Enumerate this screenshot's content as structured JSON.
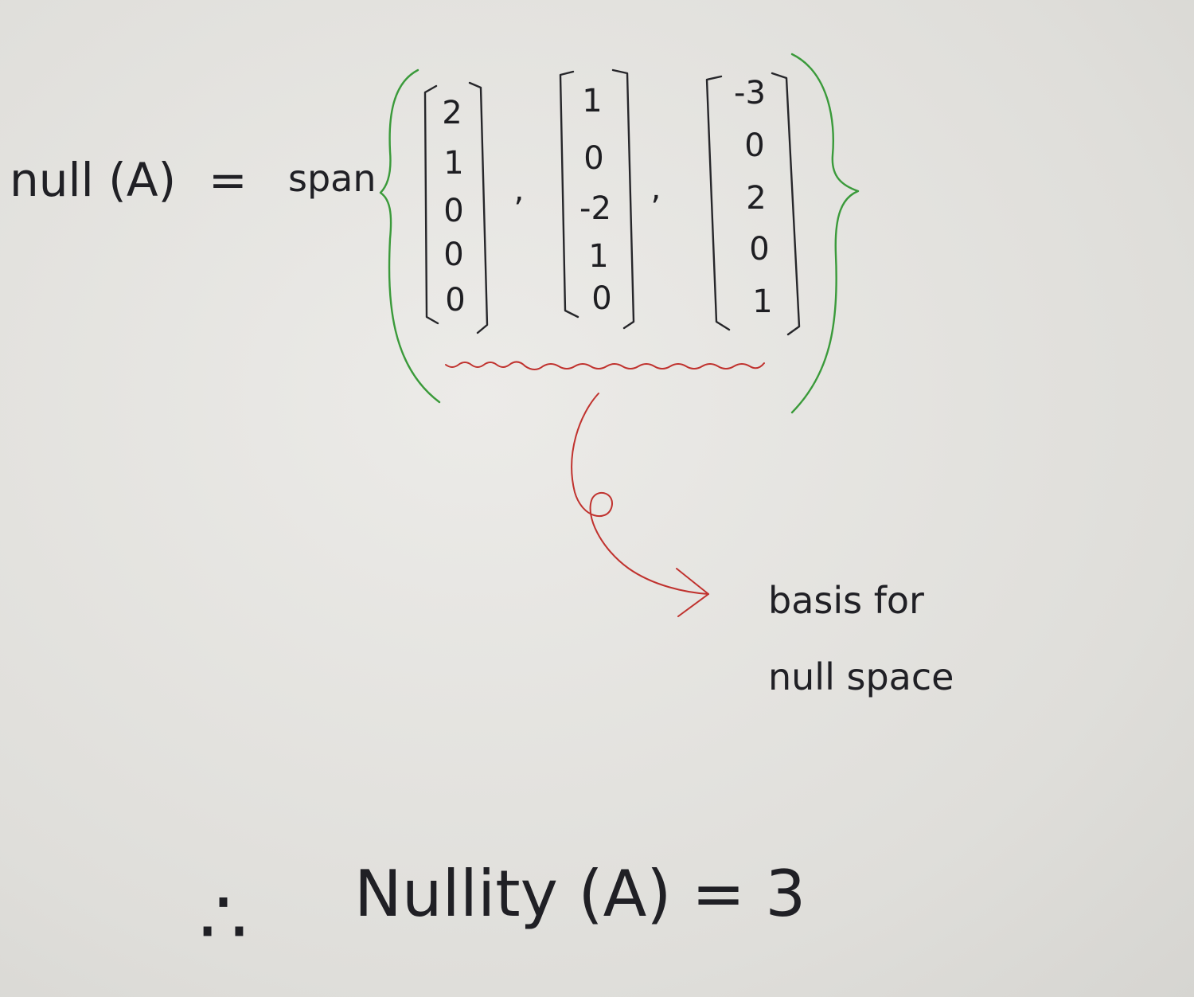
{
  "equation": {
    "lhs": "null (A)",
    "equals": "=",
    "span_word": "span",
    "vectors": [
      [
        "2",
        "1",
        "0",
        "0",
        "0"
      ],
      [
        "1",
        "0",
        "-2",
        "1",
        "0"
      ],
      [
        "-3",
        "0",
        "2",
        "0",
        "1"
      ]
    ],
    "separator": ","
  },
  "annotation": {
    "line1": "basis for",
    "line2": "null space"
  },
  "conclusion": {
    "therefore_symbol": "∴",
    "text": "Nullity (A) = 3"
  },
  "colors": {
    "ink": "#1e1e22",
    "brace": "#3a9a3a",
    "annotation": "#c0322e"
  }
}
